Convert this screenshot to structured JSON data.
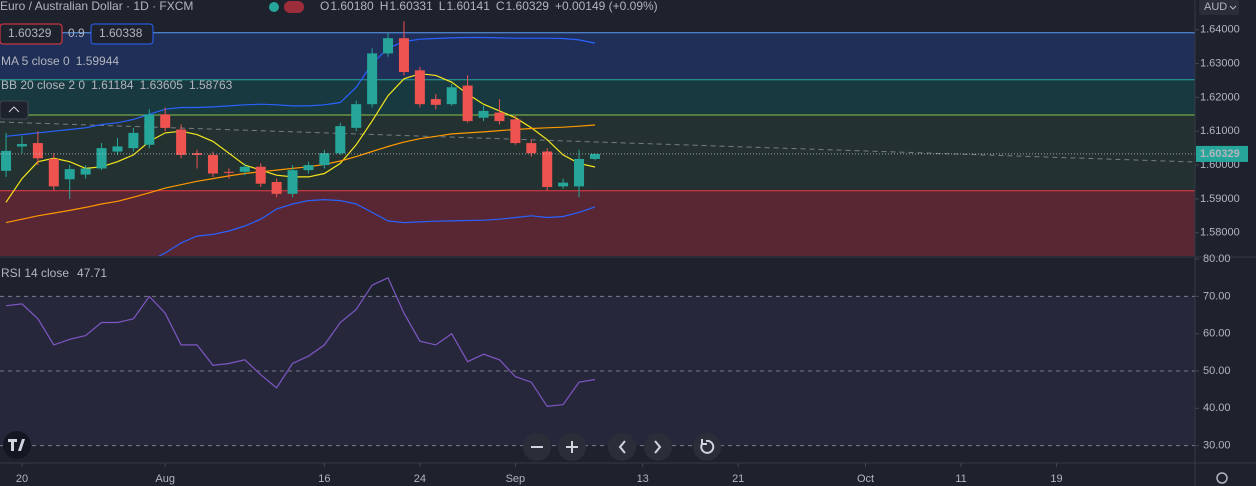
{
  "header": {
    "title": "Euro / Australian Dollar · 1D · FXCM",
    "ohlc": [
      {
        "label": "O",
        "value": "1.60180"
      },
      {
        "label": "H",
        "value": "1.60331"
      },
      {
        "label": "L",
        "value": "1.60141"
      },
      {
        "label": "C",
        "value": "1.60329"
      }
    ],
    "change": "+0.00149 (+0.09%)",
    "sell": "1.60329",
    "spread": "0.9",
    "buy": "1.60338",
    "currency": "AUD"
  },
  "chart_data": [
    {
      "type": "candlestick",
      "x": [
        0,
        1,
        2,
        3,
        4,
        5,
        6,
        7,
        8,
        9,
        10,
        11,
        12,
        13,
        14,
        15,
        16,
        17,
        18,
        19,
        20,
        21,
        22,
        23,
        24,
        25,
        26,
        27,
        28,
        29,
        30,
        31,
        32,
        33,
        34,
        35,
        36,
        37
      ],
      "open": [
        1.5983,
        1.6055,
        1.6065,
        1.6018,
        1.5958,
        1.5972,
        1.599,
        1.604,
        1.605,
        1.606,
        1.615,
        1.6105,
        1.6035,
        1.603,
        1.598,
        1.598,
        1.5995,
        1.595,
        1.5915,
        1.5985,
        1.6,
        1.6035,
        1.611,
        1.618,
        1.633,
        1.6375,
        1.628,
        1.6195,
        1.618,
        1.6235,
        1.614,
        1.6155,
        1.6135,
        1.6065,
        1.604,
        1.5937,
        1.5937,
        1.6018
      ],
      "high": [
        1.6095,
        1.6085,
        1.61,
        1.6035,
        1.6,
        1.6,
        1.6065,
        1.608,
        1.611,
        1.6165,
        1.617,
        1.612,
        1.6045,
        1.604,
        1.599,
        1.6005,
        1.6005,
        1.596,
        1.6,
        1.601,
        1.6045,
        1.6125,
        1.619,
        1.6345,
        1.639,
        1.6425,
        1.629,
        1.621,
        1.624,
        1.6265,
        1.6175,
        1.6195,
        1.6145,
        1.6075,
        1.605,
        1.596,
        1.6045,
        1.60331
      ],
      "low": [
        1.5965,
        1.6035,
        1.6,
        1.5925,
        1.59,
        1.596,
        1.5985,
        1.603,
        1.604,
        1.605,
        1.61,
        1.602,
        1.599,
        1.5965,
        1.596,
        1.597,
        1.5935,
        1.5905,
        1.5905,
        1.5975,
        1.599,
        1.603,
        1.61,
        1.617,
        1.632,
        1.6265,
        1.617,
        1.6165,
        1.6175,
        1.6125,
        1.613,
        1.612,
        1.606,
        1.6025,
        1.5925,
        1.593,
        1.5905,
        1.60141
      ],
      "close": [
        1.6042,
        1.6062,
        1.602,
        1.5937,
        1.5988,
        1.599,
        1.605,
        1.6055,
        1.6095,
        1.615,
        1.611,
        1.603,
        1.603,
        1.5975,
        1.5978,
        1.5995,
        1.5945,
        1.5915,
        1.5985,
        1.6,
        1.6035,
        1.6115,
        1.618,
        1.633,
        1.6375,
        1.6275,
        1.618,
        1.6178,
        1.623,
        1.613,
        1.616,
        1.613,
        1.6065,
        1.6035,
        1.5935,
        1.5948,
        1.6018,
        1.60329
      ],
      "up_color": "#26a69a",
      "down_color": "#ef5350",
      "xlim": [
        -0.38,
        74.7
      ],
      "xticks": [
        {
          "value": 1,
          "label": "20"
        },
        {
          "value": 10,
          "label": "Aug"
        },
        {
          "value": 20,
          "label": "16"
        },
        {
          "value": 26,
          "label": "24"
        },
        {
          "value": 32,
          "label": "Sep"
        },
        {
          "value": 40,
          "label": "13"
        },
        {
          "value": 46,
          "label": "21"
        },
        {
          "value": 54,
          "label": "Oct"
        },
        {
          "value": 60,
          "label": "11"
        },
        {
          "value": 66,
          "label": "19"
        }
      ],
      "ylim": [
        1.57312,
        1.64879
      ],
      "yticks": [
        {
          "value": 1.58,
          "label": "1.58000"
        },
        {
          "value": 1.59,
          "label": "1.59000"
        },
        {
          "value": 1.6,
          "label": "1.60000"
        },
        {
          "value": 1.61,
          "label": "1.61000"
        },
        {
          "value": 1.62,
          "label": "1.62000"
        },
        {
          "value": 1.63,
          "label": "1.63000"
        },
        {
          "value": 1.64,
          "label": "1.64000"
        }
      ],
      "levels": [
        {
          "value": 1.6391,
          "color": "#5b9cf6"
        },
        {
          "value": 1.6252,
          "color": "#26a69a"
        },
        {
          "value": 1.6148,
          "color": "#8bc34a"
        },
        {
          "value": 1.5924,
          "color": "#f23645"
        },
        {
          "value": 1.5718,
          "color": "#5a2a30"
        }
      ],
      "zone_fills": [
        "rgba(41,98,255,0.20)",
        "rgba(0,150,136,0.20)",
        "rgba(76,175,80,0.12)",
        "rgba(242,54,69,0.28)"
      ],
      "indicators": [
        {
          "name": "MA 5 close 0",
          "lines": [
            {
              "color": "#f5e61c",
              "values": [
                1.589,
                1.596,
                1.601,
                1.602,
                1.601,
                1.599,
                1.5995,
                1.601,
                1.603,
                1.607,
                1.6095,
                1.61,
                1.609,
                1.607,
                1.6035,
                1.6,
                1.5985,
                1.597,
                1.5965,
                1.5965,
                1.5975,
                1.6005,
                1.606,
                1.613,
                1.6205,
                1.6255,
                1.627,
                1.6265,
                1.6245,
                1.621,
                1.618,
                1.616,
                1.614,
                1.611,
                1.6075,
                1.603,
                1.6005,
                1.59944
              ]
            }
          ]
        },
        {
          "name": "BB 20 close 2 0",
          "lines": [
            {
              "color": "#ff9800",
              "values": [
                1.583,
                1.584,
                1.585,
                1.5858,
                1.5866,
                1.5875,
                1.5885,
                1.5893,
                1.5905,
                1.5918,
                1.5932,
                1.5942,
                1.5952,
                1.596,
                1.5968,
                1.5975,
                1.598,
                1.5985,
                1.599,
                1.5995,
                1.6002,
                1.6012,
                1.6025,
                1.604,
                1.6055,
                1.6068,
                1.6078,
                1.6085,
                1.6092,
                1.6095,
                1.6098,
                1.6102,
                1.6105,
                1.6108,
                1.611,
                1.6112,
                1.6115,
                1.61184
              ]
            },
            {
              "color": "#2962ff",
              "values": [
                1.6085,
                1.609,
                1.6095,
                1.61,
                1.6105,
                1.611,
                1.612,
                1.6125,
                1.6135,
                1.615,
                1.6165,
                1.617,
                1.617,
                1.6172,
                1.6175,
                1.6178,
                1.618,
                1.6178,
                1.6175,
                1.6175,
                1.6178,
                1.6185,
                1.623,
                1.63,
                1.6345,
                1.6365,
                1.6372,
                1.6374,
                1.6376,
                1.6377,
                1.6377,
                1.6376,
                1.6375,
                1.6375,
                1.6375,
                1.6374,
                1.637,
                1.63605
              ]
            },
            {
              "color": "#2962ff",
              "values": [
                null,
                null,
                null,
                null,
                null,
                null,
                null,
                null,
                null,
                1.5716,
                1.574,
                1.577,
                1.579,
                1.5795,
                1.5805,
                1.582,
                1.584,
                1.587,
                1.5885,
                1.5895,
                1.5898,
                1.5895,
                1.5885,
                1.586,
                1.5835,
                1.583,
                1.5832,
                1.5834,
                1.5835,
                1.5836,
                1.5837,
                1.584,
                1.5845,
                1.585,
                1.5845,
                1.5848,
                1.586,
                1.58763
              ]
            }
          ]
        }
      ]
    },
    {
      "type": "line",
      "series": [
        {
          "name": "RSI 14 close",
          "color": "#7e57c2",
          "values": [
            67.5,
            68,
            64,
            57,
            58.5,
            59.5,
            63,
            63,
            64,
            70,
            65.5,
            57,
            57,
            51.5,
            52,
            53,
            49,
            45.5,
            52,
            54,
            57,
            63,
            66.5,
            73,
            75,
            65.5,
            58,
            57,
            60,
            52.5,
            54.5,
            53,
            48.5,
            47,
            40.5,
            41,
            47,
            47.71
          ]
        }
      ],
      "ylim": [
        25.6,
        80.3
      ],
      "yticks": [
        {
          "value": 30,
          "label": "30.00"
        },
        {
          "value": 40,
          "label": "40.00"
        },
        {
          "value": 50,
          "label": "50.00"
        },
        {
          "value": 60,
          "label": "60.00"
        },
        {
          "value": 70,
          "label": "70.00"
        },
        {
          "value": 80,
          "label": "80.00"
        }
      ],
      "band": [
        30,
        70
      ],
      "band_color": "rgba(126,87,194,0.10)",
      "hlines": [
        70,
        50,
        30
      ]
    }
  ]
}
